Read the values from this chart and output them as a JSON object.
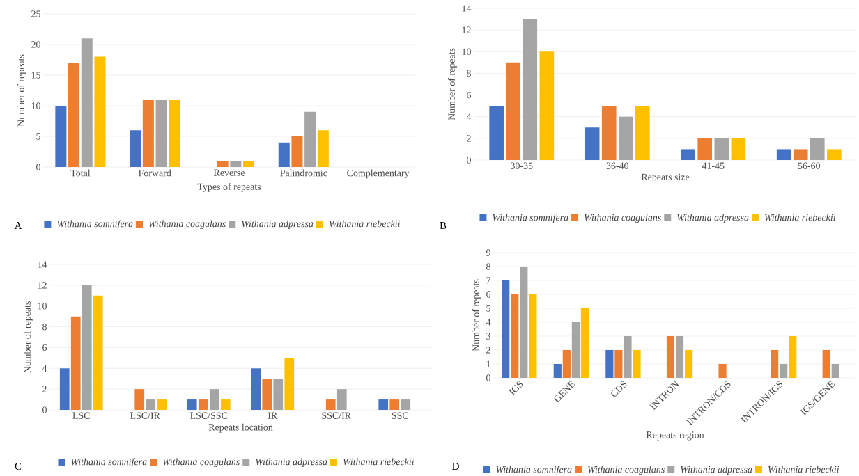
{
  "chart_data": [
    {
      "type": "bar",
      "categories": [
        "Total",
        "Forward",
        "Reverse",
        "Palindromic",
        "Complementary"
      ],
      "xlabel": "Types of repeats",
      "ylabel": "Number of repeats",
      "ylim": [
        0,
        25
      ],
      "yticks": [
        0,
        5,
        10,
        15,
        20,
        25
      ],
      "grid": "y",
      "legend": "bottom",
      "annotations": [
        "A"
      ],
      "series": [
        {
          "name": "Withania somnifera",
          "color": "#4472c4",
          "values": [
            10,
            6,
            0,
            4,
            0
          ]
        },
        {
          "name": "Withania coagulans",
          "color": "#ed7d31",
          "values": [
            17,
            11,
            1,
            5,
            0
          ]
        },
        {
          "name": "Withania adpressa",
          "color": "#a5a5a5",
          "values": [
            21,
            11,
            1,
            9,
            0
          ]
        },
        {
          "name": "Withania riebeckii",
          "color": "#ffc000",
          "values": [
            18,
            11,
            1,
            6,
            0
          ]
        }
      ]
    },
    {
      "type": "bar",
      "categories": [
        "30-35",
        "36-40",
        "41-45",
        "56-60"
      ],
      "xlabel": "Repeats size",
      "ylabel": "Number of repeats",
      "ylim": [
        0,
        14
      ],
      "yticks": [
        0,
        2,
        4,
        6,
        8,
        10,
        12,
        14
      ],
      "grid": "y",
      "legend": "bottom",
      "annotations": [
        "B"
      ],
      "series": [
        {
          "name": "Withania somnifera",
          "color": "#4472c4",
          "values": [
            5,
            3,
            1,
            1
          ]
        },
        {
          "name": "Withania coagulans",
          "color": "#ed7d31",
          "values": [
            9,
            5,
            2,
            1
          ]
        },
        {
          "name": "Withania adpressa",
          "color": "#a5a5a5",
          "values": [
            13,
            4,
            2,
            2
          ]
        },
        {
          "name": "Withania riebeckii",
          "color": "#ffc000",
          "values": [
            10,
            5,
            2,
            1
          ]
        }
      ]
    },
    {
      "type": "bar",
      "categories": [
        "LSC",
        "LSC/IR",
        "LSC/SSC",
        "IR",
        "SSC/IR",
        "SSC"
      ],
      "xlabel": "Repeats location",
      "ylabel": "Number of repeats",
      "ylim": [
        0,
        14
      ],
      "yticks": [
        0,
        2,
        4,
        6,
        8,
        10,
        12,
        14
      ],
      "grid": "y",
      "legend": "bottom",
      "annotations": [
        "C"
      ],
      "series": [
        {
          "name": "Withania somnifera",
          "color": "#4472c4",
          "values": [
            4,
            0,
            1,
            4,
            0,
            1
          ]
        },
        {
          "name": "Withania coagulans",
          "color": "#ed7d31",
          "values": [
            9,
            2,
            1,
            3,
            1,
            1
          ]
        },
        {
          "name": "Withania adpressa",
          "color": "#a5a5a5",
          "values": [
            12,
            1,
            2,
            3,
            2,
            1
          ]
        },
        {
          "name": "Withania riebeckii",
          "color": "#ffc000",
          "values": [
            11,
            1,
            1,
            5,
            0,
            0
          ]
        }
      ]
    },
    {
      "type": "bar",
      "categories": [
        "IGS",
        "GENE",
        "CDS",
        "INTRON",
        "INTRON/CDS",
        "INTRON/IGS",
        "IGS/GENE"
      ],
      "xlabel": "Repeats region",
      "ylabel": "Number of repeats",
      "ylim": [
        0,
        9
      ],
      "yticks": [
        0,
        1,
        2,
        3,
        4,
        5,
        6,
        7,
        8,
        9
      ],
      "grid": "y",
      "legend": "bottom",
      "annotations": [
        "D"
      ],
      "series": [
        {
          "name": "Withania somnifera",
          "color": "#4472c4",
          "values": [
            7,
            1,
            2,
            0,
            0,
            0,
            0
          ]
        },
        {
          "name": "Withania coagulans",
          "color": "#ed7d31",
          "values": [
            6,
            2,
            2,
            3,
            1,
            2,
            2
          ]
        },
        {
          "name": "Withania adpressa",
          "color": "#a5a5a5",
          "values": [
            8,
            4,
            3,
            3,
            0,
            1,
            1
          ]
        },
        {
          "name": "Withania riebeckii",
          "color": "#ffc000",
          "values": [
            6,
            5,
            2,
            2,
            0,
            3,
            0
          ]
        }
      ]
    }
  ]
}
